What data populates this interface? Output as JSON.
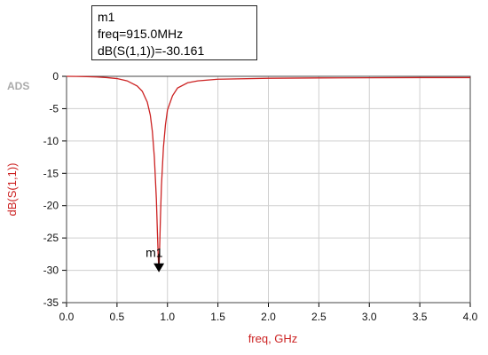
{
  "brand_tag": "ADS",
  "marker": {
    "name": "m1",
    "freq_line": "freq=915.0MHz",
    "value_line": "dB(S(1,1))=-30.161",
    "label": "m1",
    "x": 0.915,
    "y": -30.161
  },
  "colors": {
    "trace": "#cc2222",
    "axis_label": "#cc2222",
    "grid": "#cfcfcf",
    "marker": "#000000"
  },
  "chart_data": {
    "type": "line",
    "xlabel": "freq, GHz",
    "ylabel": "dB(S(1,1))",
    "xlim": [
      0.0,
      4.0
    ],
    "ylim": [
      -35,
      0
    ],
    "xticks": [
      "0.0",
      "0.5",
      "1.0",
      "1.5",
      "2.0",
      "2.5",
      "3.0",
      "3.5",
      "4.0"
    ],
    "yticks": [
      "0",
      "-5",
      "-10",
      "-15",
      "-20",
      "-25",
      "-30",
      "-35"
    ],
    "grid": true,
    "series": [
      {
        "x": [
          0.0,
          0.1,
          0.2,
          0.3,
          0.4,
          0.5,
          0.6,
          0.7,
          0.75,
          0.8,
          0.83,
          0.85,
          0.87,
          0.89,
          0.9,
          0.91,
          0.915,
          0.92,
          0.93,
          0.94,
          0.96,
          0.98,
          1.0,
          1.05,
          1.1,
          1.2,
          1.3,
          1.5,
          2.0,
          2.5,
          3.0,
          3.5,
          4.0
        ],
        "y": [
          0.0,
          -0.02,
          -0.05,
          -0.1,
          -0.2,
          -0.35,
          -0.7,
          -1.5,
          -2.3,
          -4.0,
          -6.0,
          -8.5,
          -12.5,
          -19.0,
          -24.0,
          -28.5,
          -30.161,
          -28.0,
          -22.0,
          -17.0,
          -11.0,
          -7.5,
          -5.2,
          -3.0,
          -1.8,
          -1.0,
          -0.7,
          -0.45,
          -0.3,
          -0.25,
          -0.22,
          -0.2,
          -0.2
        ]
      }
    ]
  }
}
